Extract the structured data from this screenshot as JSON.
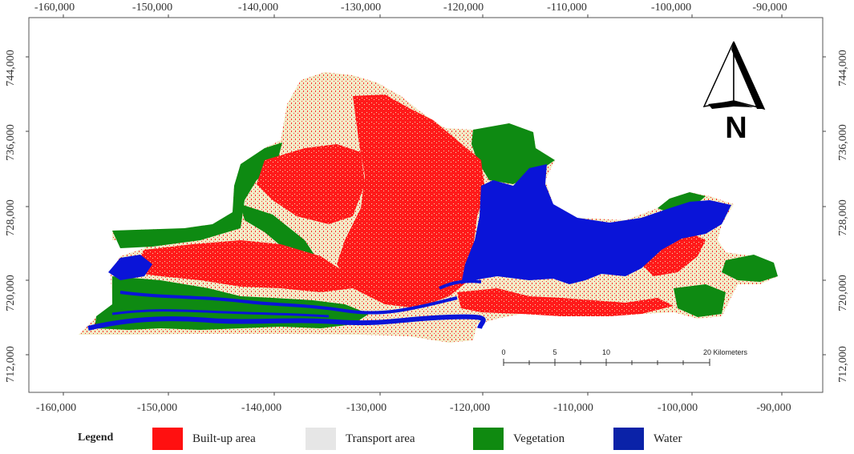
{
  "map": {
    "x_ticks": [
      "-160,000",
      "-150,000",
      "-140,000",
      "-130,000",
      "-120,000",
      "-110,000",
      "-100,000",
      "-90,000"
    ],
    "y_ticks": [
      "744,000",
      "736,000",
      "728,000",
      "720,000",
      "712,000"
    ],
    "north_arrow": {
      "icon": "north-arrow-icon",
      "letter": "N"
    },
    "scale_bar": {
      "labels": [
        "0",
        "5",
        "10",
        "20 Kilometers"
      ]
    },
    "colors": {
      "built_up": "#ff1a1a",
      "transport": "#f1edc8",
      "vegetation": "#0e8a12",
      "water": "#0a14d8"
    }
  },
  "legend": {
    "title": "Legend",
    "items": [
      {
        "label": "Built-up area",
        "color": "#ff1010"
      },
      {
        "label": "Transport area",
        "color": "#e6e6e6"
      },
      {
        "label": "Vegetation",
        "color": "#0f8a10"
      },
      {
        "label": "Water",
        "color": "#0a22a8"
      }
    ]
  }
}
